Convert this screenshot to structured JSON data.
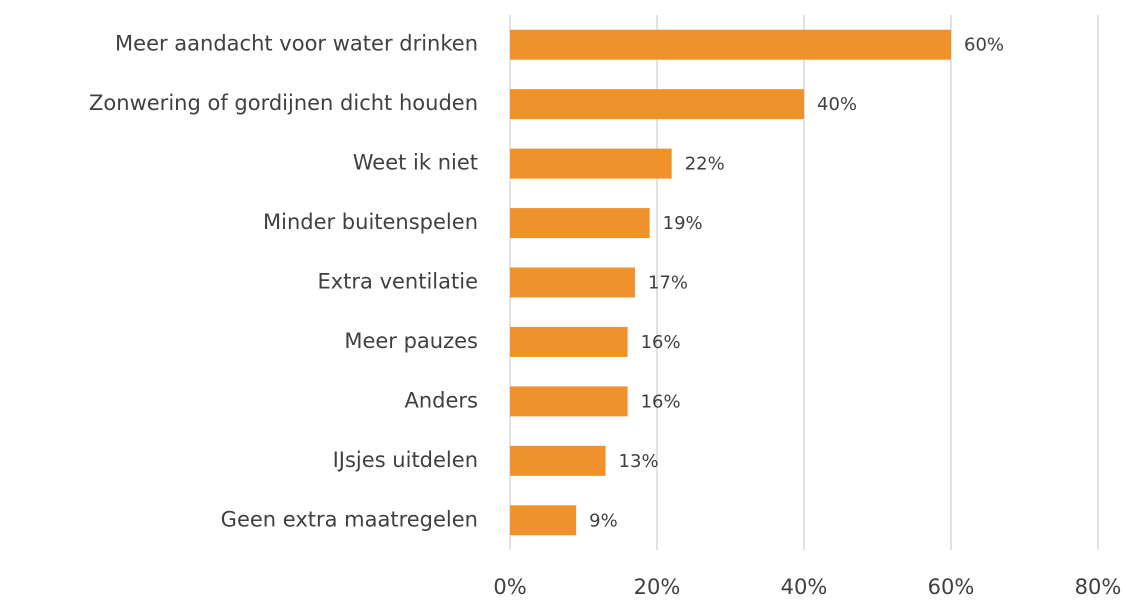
{
  "chart_data": {
    "type": "bar",
    "orientation": "horizontal",
    "categories": [
      "Meer aandacht voor water drinken",
      "Zonwering of gordijnen dicht houden",
      "Weet ik niet",
      "Minder buitenspelen",
      "Extra ventilatie",
      "Meer pauzes",
      "Anders",
      "IJsjes uitdelen",
      "Geen extra maatregelen"
    ],
    "values": [
      60,
      40,
      22,
      19,
      17,
      16,
      16,
      13,
      9
    ],
    "value_labels": [
      "60%",
      "40%",
      "22%",
      "19%",
      "17%",
      "16%",
      "16%",
      "13%",
      "9%"
    ],
    "color": "#f0922b",
    "xlim": [
      0,
      80
    ],
    "xticks": [
      {
        "value": 0,
        "label": "0%"
      },
      {
        "value": 20,
        "label": "20%"
      },
      {
        "value": 40,
        "label": "40%"
      },
      {
        "value": 60,
        "label": "60%"
      },
      {
        "value": 80,
        "label": "80%"
      }
    ],
    "grid": true
  }
}
